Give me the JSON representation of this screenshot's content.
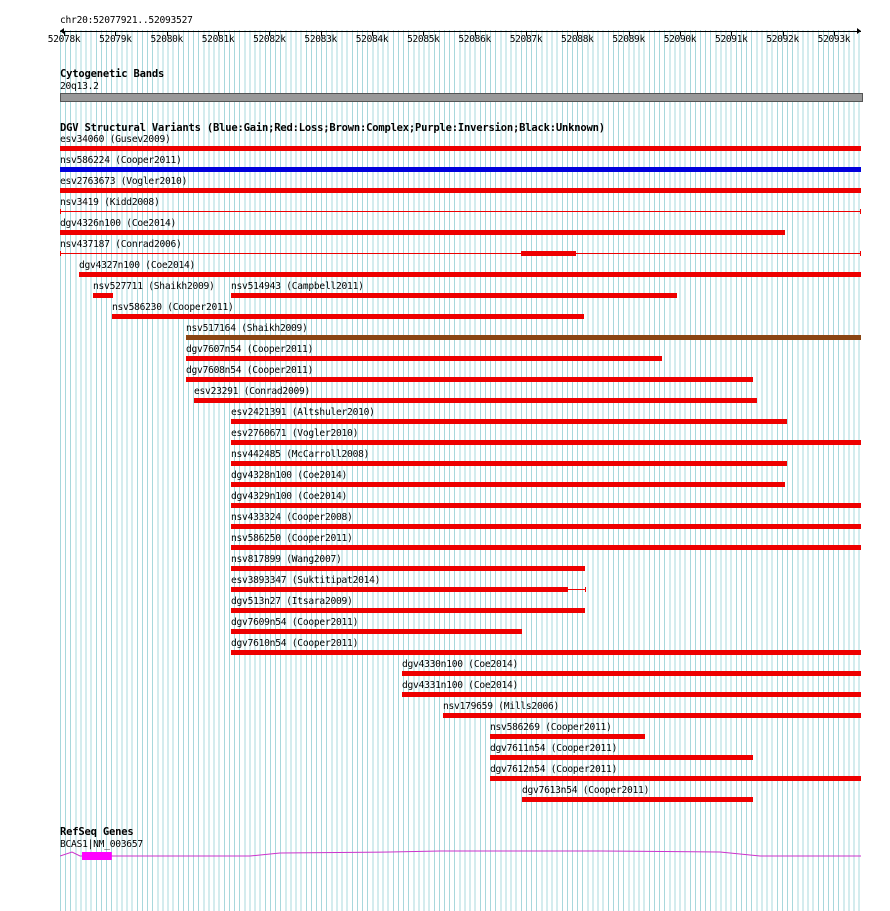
{
  "position_label": "chr20:52077921..52093527",
  "ruler": {
    "ticks": [
      "52078k",
      "52079k",
      "52080k",
      "52081k",
      "52082k",
      "52083k",
      "52084k",
      "52085k",
      "52086k",
      "52087k",
      "52088k",
      "52089k",
      "52090k",
      "52091k",
      "52092k",
      "52093k"
    ]
  },
  "cytoband": {
    "header": "Cytogenetic Bands",
    "band": "20q13.2",
    "band_color": "#999999"
  },
  "dgv": {
    "header": "DGV Structural Variants (Blue:Gain;Red:Loss;Brown:Complex;Purple:Inversion;Black:Unknown)",
    "colors": {
      "gain": "#0000dd",
      "loss": "#ee0000",
      "complex": "#8b4513"
    },
    "variants": [
      {
        "label": "esv34060 (Gusev2009)",
        "type": "loss",
        "start": 52077921,
        "end": 52093527
      },
      {
        "label": "nsv586224 (Cooper2011)",
        "type": "gain",
        "start": 52077921,
        "end": 52093527
      },
      {
        "label": "esv2763673 (Vogler2010)",
        "type": "loss",
        "start": 52077921,
        "end": 52093527
      },
      {
        "label": "nsv3419 (Kidd2008)",
        "type": "loss",
        "start": 52077921,
        "end": 52093527,
        "style": "thin"
      },
      {
        "label": "dgv4326n100 (Coe2014)",
        "type": "loss",
        "start": 52077921,
        "end": 52092050
      },
      {
        "label": "nsv437187 (Conrad2006)",
        "type": "loss",
        "start": 52077921,
        "end": 52093527,
        "style": "thin",
        "block_start": 52086900,
        "block_end": 52087970
      },
      {
        "label": "dgv4327n100 (Coe2014)",
        "type": "loss",
        "start": 52078300,
        "end": 52093527
      },
      {
        "label": "nsv527711 (Shaikh2009)",
        "type": "loss",
        "start": 52078560,
        "end": 52078960
      },
      {
        "label": "nsv514943 (Campbell2011)",
        "type": "loss",
        "start": 52081250,
        "end": 52089940,
        "row": 7
      },
      {
        "label": "nsv586230 (Cooper2011)",
        "type": "loss",
        "start": 52078930,
        "end": 52088140
      },
      {
        "label": "nsv517164 (Shaikh2009)",
        "type": "complex",
        "start": 52080370,
        "end": 52093527
      },
      {
        "label": "dgv7607n54 (Cooper2011)",
        "type": "loss",
        "start": 52080370,
        "end": 52089650
      },
      {
        "label": "dgv7608n54 (Cooper2011)",
        "type": "loss",
        "start": 52080370,
        "end": 52091430
      },
      {
        "label": "esv23291 (Conrad2009)",
        "type": "loss",
        "start": 52080540,
        "end": 52091510
      },
      {
        "label": "esv2421391 (Altshuler2010)",
        "type": "loss",
        "start": 52081250,
        "end": 52092080
      },
      {
        "label": "esv2760671 (Vogler2010)",
        "type": "loss",
        "start": 52081250,
        "end": 52093527
      },
      {
        "label": "nsv442485 (McCarroll2008)",
        "type": "loss",
        "start": 52081250,
        "end": 52092080
      },
      {
        "label": "dgv4328n100 (Coe2014)",
        "type": "loss",
        "start": 52081250,
        "end": 52092050
      },
      {
        "label": "dgv4329n100 (Coe2014)",
        "type": "loss",
        "start": 52081250,
        "end": 52093527
      },
      {
        "label": "nsv433324 (Cooper2008)",
        "type": "loss",
        "start": 52081250,
        "end": 52093527
      },
      {
        "label": "nsv586250 (Cooper2011)",
        "type": "loss",
        "start": 52081250,
        "end": 52093527
      },
      {
        "label": "nsv817899 (Wang2007)",
        "type": "loss",
        "start": 52081250,
        "end": 52088150
      },
      {
        "label": "esv3893347 (Suktitipat2014)",
        "type": "loss",
        "start": 52081250,
        "end": 52087820,
        "tail_end": 52088160
      },
      {
        "label": "dgv513n27 (Itsara2009)",
        "type": "loss",
        "start": 52081250,
        "end": 52088150
      },
      {
        "label": "dgv7609n54 (Cooper2011)",
        "type": "loss",
        "start": 52081250,
        "end": 52086930
      },
      {
        "label": "dgv7610n54 (Cooper2011)",
        "type": "loss",
        "start": 52081250,
        "end": 52093527
      },
      {
        "label": "dgv4330n100 (Coe2014)",
        "type": "loss",
        "start": 52084580,
        "end": 52093527
      },
      {
        "label": "dgv4331n100 (Coe2014)",
        "type": "loss",
        "start": 52084580,
        "end": 52093527
      },
      {
        "label": "nsv179659 (Mills2006)",
        "type": "loss",
        "start": 52085380,
        "end": 52093527
      },
      {
        "label": "nsv586269 (Cooper2011)",
        "type": "loss",
        "start": 52086300,
        "end": 52089320
      },
      {
        "label": "dgv7611n54 (Cooper2011)",
        "type": "loss",
        "start": 52086300,
        "end": 52091430
      },
      {
        "label": "dgv7612n54 (Cooper2011)",
        "type": "loss",
        "start": 52086300,
        "end": 52093527
      },
      {
        "label": "dgv7613n54 (Cooper2011)",
        "type": "loss",
        "start": 52086930,
        "end": 52091430
      }
    ]
  },
  "refseq": {
    "header": "RefSeq Genes",
    "gene_label": "BCAS1|NM_003657",
    "color": "#cc33cc",
    "exon_color": "#ff00ff",
    "exon_start": 52078350,
    "exon_end": 52078930
  }
}
